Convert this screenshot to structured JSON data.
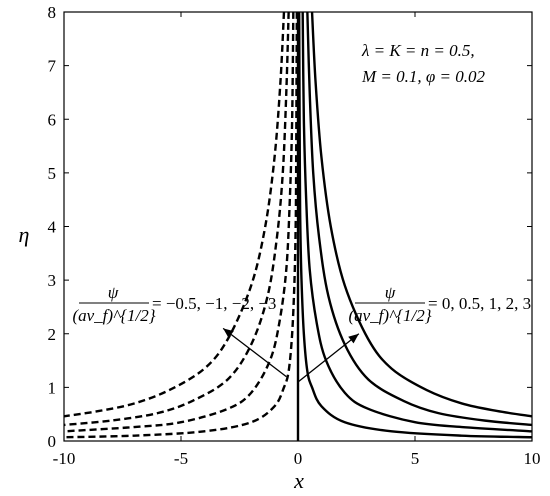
{
  "chart_data": {
    "type": "line",
    "xlabel": "x",
    "ylabel": "η",
    "xlim": [
      -10,
      10
    ],
    "ylim": [
      0,
      8
    ],
    "x_ticks": [
      "-10",
      "-5",
      "0",
      "5",
      "10"
    ],
    "y_ticks": [
      "0",
      "1",
      "2",
      "3",
      "4",
      "5",
      "6",
      "7",
      "8"
    ],
    "grid": false,
    "params_line1": "λ = K = n = 0.5,",
    "params_line2": "M = 0.1, φ = 0.02",
    "negative_annotation": {
      "numerator": "ψ",
      "denominator": "(aν_f)^{1/2}",
      "values": "= −0.5, −1, −2, −3"
    },
    "positive_annotation": {
      "numerator": "ψ",
      "denominator": "(aν_f)^{1/2}",
      "values": "= 0, 0.5, 1, 2, 3"
    },
    "series": [
      {
        "style": "dashed",
        "psi": -0.5,
        "points": [
          [
            -0.05,
            8
          ],
          [
            -0.08,
            5
          ],
          [
            -0.1,
            4
          ],
          [
            -0.15,
            3
          ],
          [
            -0.25,
            2
          ],
          [
            -0.4,
            1.3
          ],
          [
            -0.6,
            1
          ],
          [
            -1,
            0.65
          ],
          [
            -2,
            0.35
          ],
          [
            -4,
            0.18
          ],
          [
            -7,
            0.1
          ],
          [
            -10,
            0.07
          ]
        ]
      },
      {
        "style": "dashed",
        "psi": -1,
        "points": [
          [
            -0.2,
            8
          ],
          [
            -0.25,
            6
          ],
          [
            -0.35,
            4.5
          ],
          [
            -0.5,
            3.2
          ],
          [
            -0.8,
            2.2
          ],
          [
            -1.2,
            1.5
          ],
          [
            -2,
            0.9
          ],
          [
            -3,
            0.6
          ],
          [
            -5,
            0.35
          ],
          [
            -7,
            0.26
          ],
          [
            -10,
            0.18
          ]
        ]
      },
      {
        "style": "dashed",
        "psi": -2,
        "points": [
          [
            -0.4,
            8
          ],
          [
            -0.5,
            6.5
          ],
          [
            -0.65,
            5
          ],
          [
            -0.9,
            3.8
          ],
          [
            -1.3,
            2.7
          ],
          [
            -2,
            1.8
          ],
          [
            -3,
            1.15
          ],
          [
            -4.5,
            0.75
          ],
          [
            -6,
            0.52
          ],
          [
            -8,
            0.38
          ],
          [
            -10,
            0.3
          ]
        ]
      },
      {
        "style": "dashed",
        "psi": -3,
        "points": [
          [
            -0.6,
            8
          ],
          [
            -0.75,
            6.7
          ],
          [
            -1,
            5.3
          ],
          [
            -1.4,
            4
          ],
          [
            -2,
            2.9
          ],
          [
            -3,
            1.9
          ],
          [
            -4,
            1.35
          ],
          [
            -5.5,
            0.95
          ],
          [
            -7,
            0.7
          ],
          [
            -8.5,
            0.56
          ],
          [
            -10,
            0.46
          ]
        ]
      },
      {
        "style": "solid",
        "psi": 0,
        "points": [
          [
            0,
            0
          ],
          [
            0,
            8
          ]
        ]
      },
      {
        "style": "solid",
        "psi": 0.5,
        "points": [
          [
            0.05,
            8
          ],
          [
            0.08,
            5
          ],
          [
            0.1,
            4
          ],
          [
            0.15,
            3
          ],
          [
            0.25,
            2
          ],
          [
            0.4,
            1.3
          ],
          [
            0.6,
            1
          ],
          [
            1,
            0.65
          ],
          [
            2,
            0.35
          ],
          [
            4,
            0.18
          ],
          [
            7,
            0.1
          ],
          [
            10,
            0.07
          ]
        ]
      },
      {
        "style": "solid",
        "psi": 1,
        "points": [
          [
            0.2,
            8
          ],
          [
            0.25,
            6
          ],
          [
            0.35,
            4.5
          ],
          [
            0.5,
            3.2
          ],
          [
            0.8,
            2.2
          ],
          [
            1.2,
            1.5
          ],
          [
            2,
            0.9
          ],
          [
            3,
            0.6
          ],
          [
            5,
            0.35
          ],
          [
            7,
            0.26
          ],
          [
            10,
            0.18
          ]
        ]
      },
      {
        "style": "solid",
        "psi": 2,
        "points": [
          [
            0.4,
            8
          ],
          [
            0.5,
            6.5
          ],
          [
            0.65,
            5
          ],
          [
            0.9,
            3.8
          ],
          [
            1.3,
            2.7
          ],
          [
            2,
            1.8
          ],
          [
            3,
            1.15
          ],
          [
            4.5,
            0.75
          ],
          [
            6,
            0.52
          ],
          [
            8,
            0.38
          ],
          [
            10,
            0.3
          ]
        ]
      },
      {
        "style": "solid",
        "psi": 3,
        "points": [
          [
            0.6,
            8
          ],
          [
            0.75,
            6.7
          ],
          [
            1,
            5.3
          ],
          [
            1.4,
            4
          ],
          [
            2,
            2.9
          ],
          [
            3,
            1.9
          ],
          [
            4,
            1.35
          ],
          [
            5.5,
            0.95
          ],
          [
            7,
            0.7
          ],
          [
            8.5,
            0.56
          ],
          [
            10,
            0.46
          ]
        ]
      }
    ],
    "arrows": [
      {
        "from": [
          -0.5,
          1.2
        ],
        "to": [
          -3.2,
          2.1
        ]
      },
      {
        "from": [
          0,
          1.1
        ],
        "to": [
          2.6,
          2.0
        ]
      }
    ]
  }
}
